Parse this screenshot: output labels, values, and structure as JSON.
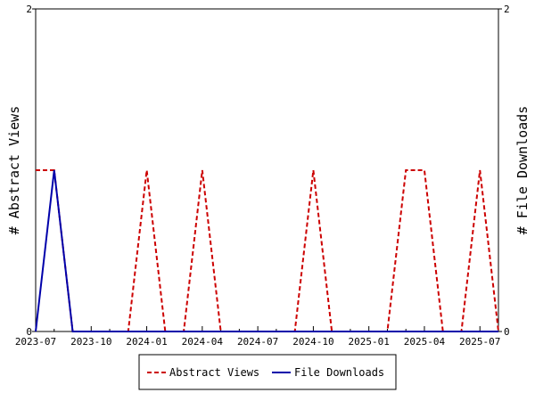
{
  "chart_data": {
    "type": "line",
    "xlabel": "",
    "ylabel_left": "# Abstract Views",
    "ylabel_right": "# File Downloads",
    "ylim_left": [
      0,
      2
    ],
    "ylim_right": [
      0,
      2
    ],
    "y_ticks_left": [
      "0",
      "2"
    ],
    "y_ticks_right": [
      "0",
      "2"
    ],
    "x_ticks": [
      "2023-07",
      "2023-10",
      "2024-01",
      "2024-04",
      "2024-07",
      "2024-10",
      "2025-01",
      "2025-04",
      "2025-07"
    ],
    "grid": false,
    "legend_position": "bottom",
    "x": [
      "2023-07",
      "2023-08",
      "2023-09",
      "2023-10",
      "2023-11",
      "2023-12",
      "2024-01",
      "2024-02",
      "2024-03",
      "2024-04",
      "2024-05",
      "2024-06",
      "2024-07",
      "2024-08",
      "2024-09",
      "2024-10",
      "2024-11",
      "2024-12",
      "2025-01",
      "2025-02",
      "2025-03",
      "2025-04",
      "2025-05",
      "2025-06",
      "2025-07",
      "2025-08"
    ],
    "series": [
      {
        "name": "Abstract Views",
        "axis": "left",
        "color": "#cc0000",
        "dash": "dashed",
        "values": [
          1,
          1,
          0,
          0,
          0,
          0,
          1,
          0,
          0,
          1,
          0,
          0,
          0,
          0,
          0,
          1,
          0,
          0,
          0,
          0,
          1,
          1,
          0,
          0,
          1,
          0
        ]
      },
      {
        "name": "File Downloads",
        "axis": "right",
        "color": "#0000aa",
        "dash": "solid",
        "values": [
          0,
          1,
          0,
          0,
          0,
          0,
          0,
          0,
          0,
          0,
          0,
          0,
          0,
          0,
          0,
          0,
          0,
          0,
          0,
          0,
          0,
          0,
          0,
          0,
          0,
          0
        ]
      }
    ]
  }
}
